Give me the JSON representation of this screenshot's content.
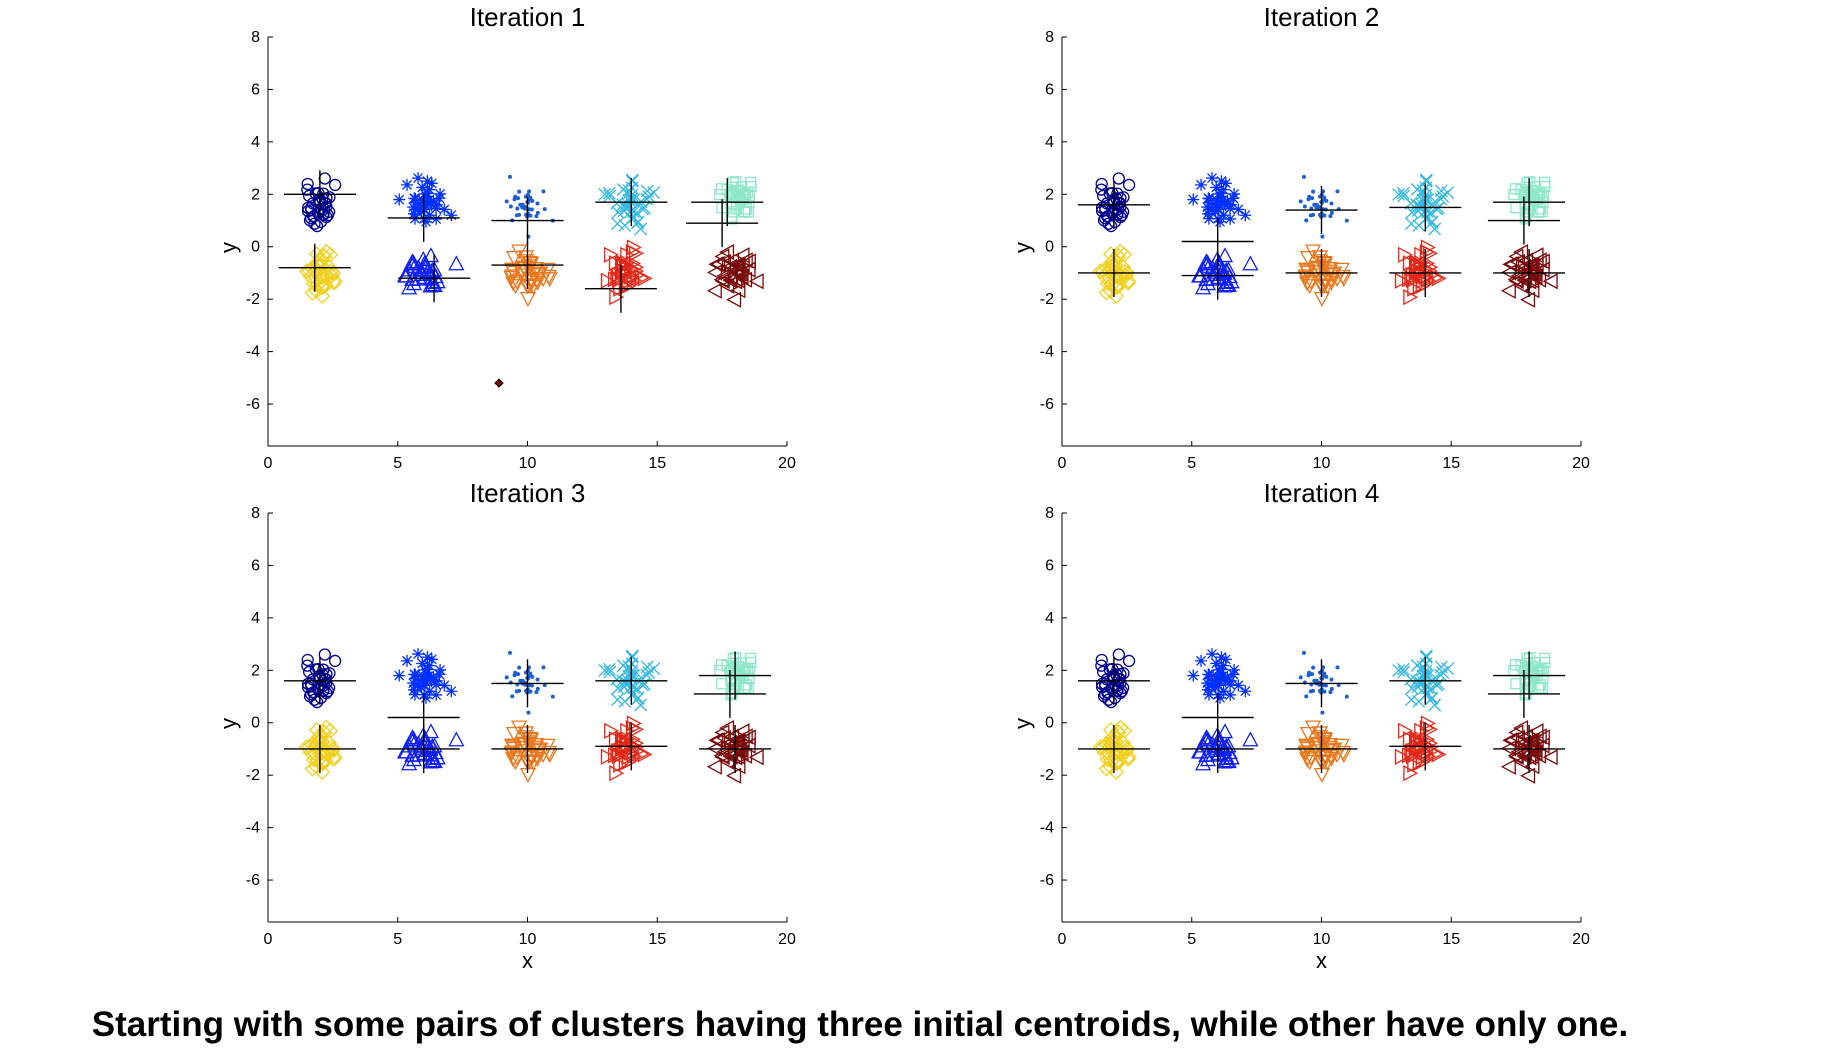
{
  "caption": "Starting with some pairs of clusters having three initial centroids, while other have only one.",
  "chart_data": [
    {
      "type": "scatter",
      "title": "Iteration 1",
      "xlabel": "",
      "ylabel": "y",
      "xlim": [
        0,
        20
      ],
      "ylim": [
        -7.6,
        8
      ],
      "xticks": [
        0,
        5,
        10,
        15,
        20
      ],
      "yticks": [
        -6,
        -4,
        -2,
        0,
        2,
        4,
        6,
        8
      ],
      "clusters": [
        {
          "center": [
            2,
            1.6
          ],
          "color": "#00008f",
          "marker": "circle"
        },
        {
          "center": [
            6,
            1.6
          ],
          "color": "#0030ff",
          "marker": "star"
        },
        {
          "center": [
            10,
            1.5
          ],
          "color": "#1f5fd0",
          "marker": "dot"
        },
        {
          "center": [
            14,
            1.6
          ],
          "color": "#35b8e0",
          "marker": "x"
        },
        {
          "center": [
            18,
            1.8
          ],
          "color": "#8ee8c8",
          "marker": "square"
        },
        {
          "center": [
            2,
            -1.0
          ],
          "color": "#f0d020",
          "marker": "diamond"
        },
        {
          "center": [
            6,
            -1.0
          ],
          "color": "#1020f0",
          "marker": "triangle-up"
        },
        {
          "center": [
            10,
            -1.0
          ],
          "color": "#e8781e",
          "marker": "triangle-down"
        },
        {
          "center": [
            14,
            -1.0
          ],
          "color": "#e02818",
          "marker": "triangle-right"
        },
        {
          "center": [
            18,
            -1.0
          ],
          "color": "#7a0a0a",
          "marker": "triangle-left"
        }
      ],
      "centroids": [
        [
          2,
          2.0
        ],
        [
          6.0,
          1.1
        ],
        [
          10,
          1.0
        ],
        [
          14.0,
          1.7
        ],
        [
          17.7,
          1.7
        ],
        [
          17.5,
          0.9
        ],
        [
          1.8,
          -0.8
        ],
        [
          6.4,
          -1.2
        ],
        [
          10,
          -0.7
        ],
        [
          13.6,
          -1.6
        ]
      ],
      "extra_points": [
        {
          "x": 8.9,
          "y": -5.2,
          "color": "#7a0a0a",
          "marker": "diamond"
        }
      ]
    },
    {
      "type": "scatter",
      "title": "Iteration 2",
      "xlabel": "",
      "ylabel": "y",
      "xlim": [
        0,
        20
      ],
      "ylim": [
        -7.6,
        8
      ],
      "xticks": [
        0,
        5,
        10,
        15,
        20
      ],
      "yticks": [
        -6,
        -4,
        -2,
        0,
        2,
        4,
        6,
        8
      ],
      "clusters": [
        {
          "center": [
            2,
            1.6
          ],
          "color": "#00008f",
          "marker": "circle"
        },
        {
          "center": [
            6,
            1.6
          ],
          "color": "#0030ff",
          "marker": "star"
        },
        {
          "center": [
            10,
            1.5
          ],
          "color": "#1f5fd0",
          "marker": "dot"
        },
        {
          "center": [
            14,
            1.6
          ],
          "color": "#35b8e0",
          "marker": "x"
        },
        {
          "center": [
            18,
            1.8
          ],
          "color": "#8ee8c8",
          "marker": "square"
        },
        {
          "center": [
            2,
            -1.0
          ],
          "color": "#f0d020",
          "marker": "diamond"
        },
        {
          "center": [
            6,
            -1.0
          ],
          "color": "#1020f0",
          "marker": "triangle-up"
        },
        {
          "center": [
            10,
            -1.0
          ],
          "color": "#e8781e",
          "marker": "triangle-down"
        },
        {
          "center": [
            14,
            -1.0
          ],
          "color": "#e02818",
          "marker": "triangle-right"
        },
        {
          "center": [
            18,
            -1.0
          ],
          "color": "#7a0a0a",
          "marker": "triangle-left"
        }
      ],
      "centroids": [
        [
          2,
          1.6
        ],
        [
          6,
          0.2
        ],
        [
          10,
          1.4
        ],
        [
          14,
          1.5
        ],
        [
          18,
          1.7
        ],
        [
          17.8,
          1.0
        ],
        [
          2,
          -1.0
        ],
        [
          6,
          -1.1
        ],
        [
          10,
          -1.0
        ],
        [
          14,
          -1.0
        ],
        [
          18,
          -1.0
        ]
      ],
      "extra_points": []
    },
    {
      "type": "scatter",
      "title": "Iteration 3",
      "xlabel": "x",
      "ylabel": "y",
      "xlim": [
        0,
        20
      ],
      "ylim": [
        -7.6,
        8
      ],
      "xticks": [
        0,
        5,
        10,
        15,
        20
      ],
      "yticks": [
        -6,
        -4,
        -2,
        0,
        2,
        4,
        6,
        8
      ],
      "clusters": [
        {
          "center": [
            2,
            1.6
          ],
          "color": "#00008f",
          "marker": "circle"
        },
        {
          "center": [
            6,
            1.6
          ],
          "color": "#0030ff",
          "marker": "star"
        },
        {
          "center": [
            10,
            1.5
          ],
          "color": "#1f5fd0",
          "marker": "dot"
        },
        {
          "center": [
            14,
            1.6
          ],
          "color": "#35b8e0",
          "marker": "x"
        },
        {
          "center": [
            18,
            1.8
          ],
          "color": "#8ee8c8",
          "marker": "square"
        },
        {
          "center": [
            2,
            -1.0
          ],
          "color": "#f0d020",
          "marker": "diamond"
        },
        {
          "center": [
            6,
            -1.0
          ],
          "color": "#1020f0",
          "marker": "triangle-up"
        },
        {
          "center": [
            10,
            -1.0
          ],
          "color": "#e8781e",
          "marker": "triangle-down"
        },
        {
          "center": [
            14,
            -1.0
          ],
          "color": "#e02818",
          "marker": "triangle-right"
        },
        {
          "center": [
            18,
            -1.0
          ],
          "color": "#7a0a0a",
          "marker": "triangle-left"
        }
      ],
      "centroids": [
        [
          2,
          1.6
        ],
        [
          6,
          0.2
        ],
        [
          10,
          1.5
        ],
        [
          14,
          1.6
        ],
        [
          18,
          1.8
        ],
        [
          17.8,
          1.1
        ],
        [
          2,
          -1.0
        ],
        [
          6,
          -1.0
        ],
        [
          10,
          -1.0
        ],
        [
          14,
          -0.9
        ],
        [
          18,
          -1.0
        ]
      ],
      "extra_points": []
    },
    {
      "type": "scatter",
      "title": "Iteration 4",
      "xlabel": "x",
      "ylabel": "y",
      "xlim": [
        0,
        20
      ],
      "ylim": [
        -7.6,
        8
      ],
      "xticks": [
        0,
        5,
        10,
        15,
        20
      ],
      "yticks": [
        -6,
        -4,
        -2,
        0,
        2,
        4,
        6,
        8
      ],
      "clusters": [
        {
          "center": [
            2,
            1.6
          ],
          "color": "#00008f",
          "marker": "circle"
        },
        {
          "center": [
            6,
            1.6
          ],
          "color": "#0030ff",
          "marker": "star"
        },
        {
          "center": [
            10,
            1.5
          ],
          "color": "#1f5fd0",
          "marker": "dot"
        },
        {
          "center": [
            14,
            1.6
          ],
          "color": "#35b8e0",
          "marker": "x"
        },
        {
          "center": [
            18,
            1.8
          ],
          "color": "#8ee8c8",
          "marker": "square"
        },
        {
          "center": [
            2,
            -1.0
          ],
          "color": "#f0d020",
          "marker": "diamond"
        },
        {
          "center": [
            6,
            -1.0
          ],
          "color": "#1020f0",
          "marker": "triangle-up"
        },
        {
          "center": [
            10,
            -1.0
          ],
          "color": "#e8781e",
          "marker": "triangle-down"
        },
        {
          "center": [
            14,
            -1.0
          ],
          "color": "#e02818",
          "marker": "triangle-right"
        },
        {
          "center": [
            18,
            -1.0
          ],
          "color": "#7a0a0a",
          "marker": "triangle-left"
        }
      ],
      "centroids": [
        [
          2,
          1.6
        ],
        [
          6,
          0.2
        ],
        [
          10,
          1.5
        ],
        [
          14,
          1.6
        ],
        [
          18,
          1.8
        ],
        [
          17.8,
          1.1
        ],
        [
          2,
          -1.0
        ],
        [
          6,
          -1.0
        ],
        [
          10,
          -1.0
        ],
        [
          14,
          -0.9
        ],
        [
          18,
          -1.0
        ]
      ],
      "extra_points": []
    }
  ]
}
